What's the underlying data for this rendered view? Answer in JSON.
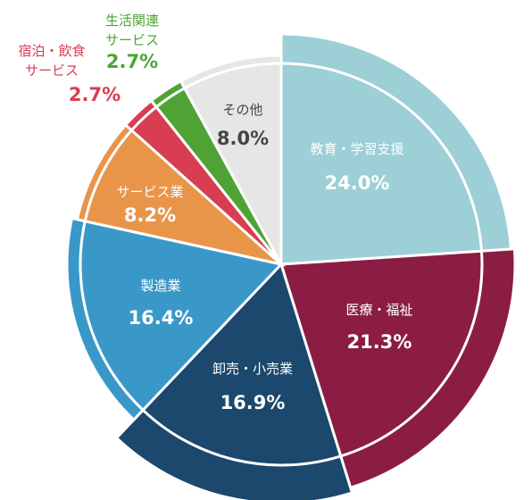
{
  "chart_data": {
    "type": "pie",
    "title": "",
    "slices": [
      {
        "label": "教育・学習支援",
        "value": 24.0,
        "display": "24.0%",
        "color": "#9ccfd6",
        "text_color": "#ffffff"
      },
      {
        "label": "医療・福祉",
        "value": 21.3,
        "display": "21.3%",
        "color": "#8b1d45",
        "text_color": "#ffffff"
      },
      {
        "label": "卸売・小売業",
        "value": 16.9,
        "display": "16.9%",
        "color": "#1b486c",
        "text_color": "#ffffff"
      },
      {
        "label": "製造業",
        "value": 16.4,
        "display": "16.4%",
        "color": "#3a98c9",
        "text_color": "#ffffff"
      },
      {
        "label": "サービス業",
        "value": 8.2,
        "display": "8.2%",
        "color": "#e8954a",
        "text_color": "#ffffff"
      },
      {
        "label": "宿泊・飲食\nサービス",
        "value": 2.7,
        "display": "2.7%",
        "color": "#d83d52",
        "text_color": "#d83d52"
      },
      {
        "label": "生活関連\nサービス",
        "value": 2.7,
        "display": "2.7%",
        "color": "#4fa335",
        "text_color": "#4fa335"
      },
      {
        "label": "その他",
        "value": 8.0,
        "display": "8.0%",
        "color": "#e6e6e6",
        "text_color": "#444444"
      }
    ]
  }
}
